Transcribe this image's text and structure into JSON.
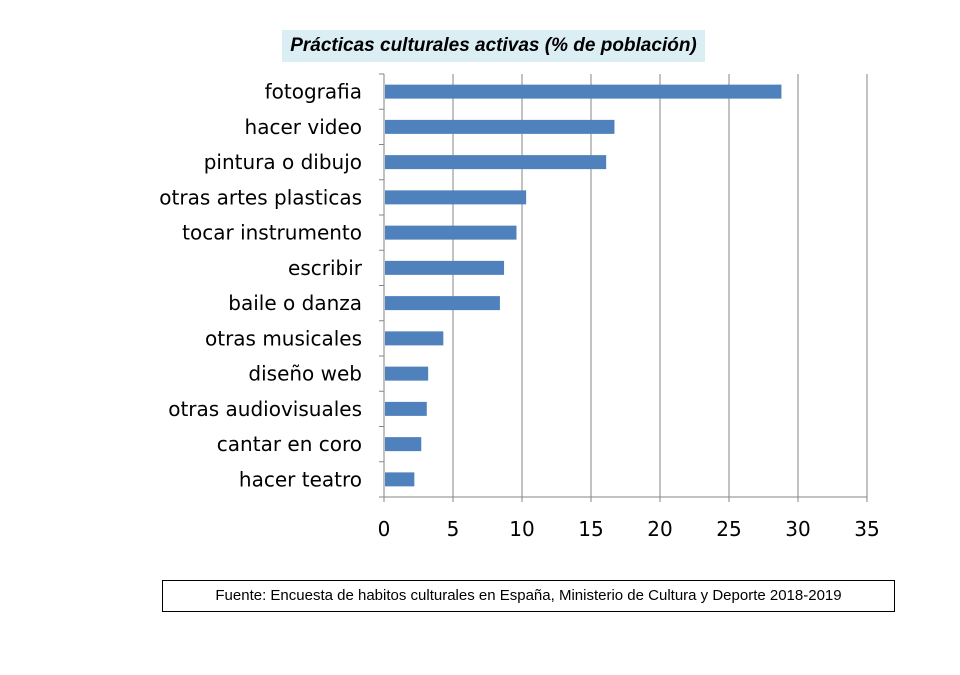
{
  "chart_data": {
    "type": "bar",
    "orientation": "horizontal",
    "title": "Prácticas culturales activas (% de población)",
    "categories": [
      "fotografia",
      "hacer video",
      "pintura o dibujo",
      "otras artes plasticas",
      "tocar instrumento",
      "escribir",
      "baile o danza",
      "otras musicales",
      "diseño web",
      "otras audiovisuales",
      "cantar en coro",
      "hacer teatro"
    ],
    "values": [
      28.8,
      16.7,
      16.1,
      10.3,
      9.6,
      8.7,
      8.4,
      4.3,
      3.2,
      3.1,
      2.7,
      2.2
    ],
    "xlim": [
      0,
      35
    ],
    "xticks": [
      0,
      5,
      10,
      15,
      20,
      25,
      30,
      35
    ],
    "grid": true,
    "bar_color": "#4f81bd",
    "grid_color": "#868686",
    "title_background": "#dbeef4",
    "xlabel": "",
    "ylabel": ""
  },
  "source": "Fuente: Encuesta de habitos culturales en España, Ministerio de Cultura y Deporte 2018-2019"
}
